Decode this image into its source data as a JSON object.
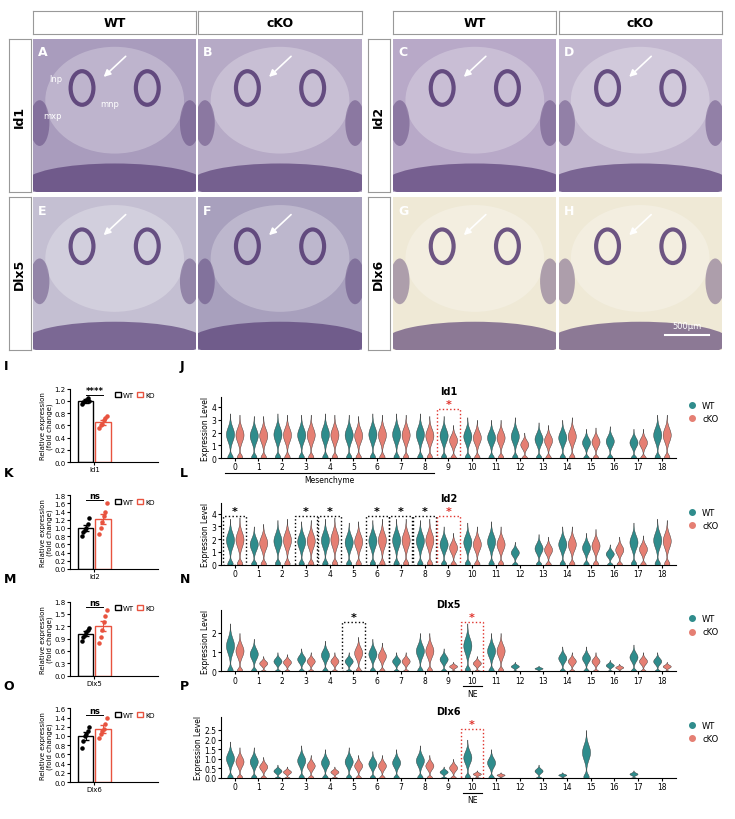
{
  "figure": {
    "column_headers": [
      "WT",
      "cKO",
      "WT",
      "cKO"
    ],
    "row_labels_left": [
      "Id1",
      "Dlx5"
    ],
    "row_labels_middle": [
      "Id2",
      "Dlx6"
    ],
    "image_panels": [
      {
        "letter": "A",
        "labels": [
          "lnp",
          "mnp",
          "mxp"
        ]
      },
      {
        "letter": "B"
      },
      {
        "letter": "C"
      },
      {
        "letter": "D"
      },
      {
        "letter": "E"
      },
      {
        "letter": "F"
      },
      {
        "letter": "G"
      },
      {
        "letter": "H",
        "scale_bar": "500μm"
      }
    ]
  },
  "chart_data": [
    {
      "panel": "I",
      "type": "bar",
      "categories": [
        "Id1"
      ],
      "ylabel": "Relative expression\n(fold change)",
      "ylim": [
        0,
        1.2
      ],
      "yticks": [
        {
          "value": 0,
          "label": "0.0"
        },
        0.2,
        0.4,
        0.6,
        0.8,
        {
          "value": 1,
          "label": "1.0"
        },
        1.2
      ],
      "legend": "upper right",
      "significance": "****",
      "series": [
        {
          "name": "WT",
          "color": "#000000",
          "values": [
            1.0
          ],
          "error": [
            0.03
          ],
          "points": [
            [
              0.95,
              0.98,
              1.0,
              1.02,
              1.05,
              1.0
            ]
          ]
        },
        {
          "name": "KO",
          "color": "#e8533f",
          "values": [
            0.65
          ],
          "error": [
            0.04
          ],
          "points": [
            [
              0.55,
              0.6,
              0.62,
              0.68,
              0.72,
              0.75
            ]
          ]
        }
      ]
    },
    {
      "panel": "J",
      "type": "violin",
      "title": "Id1",
      "ylabel": "Expression Level",
      "categories": [
        "0",
        "1",
        "2",
        "3",
        "4",
        "5",
        "6",
        "7",
        "8",
        "9",
        "10",
        "11",
        "12",
        "13",
        "14",
        "15",
        "16",
        "17",
        "18"
      ],
      "ylim": [
        0,
        4.8
      ],
      "yticks": [
        0,
        1,
        2,
        3,
        4
      ],
      "legend": "right",
      "series": [
        {
          "name": "WT",
          "color": "#2f8c8c",
          "values": [
            3.5,
            3.3,
            3.5,
            3.4,
            3.5,
            3.4,
            3.5,
            3.5,
            3.5,
            3.3,
            3.2,
            3.0,
            3.2,
            2.8,
            3.0,
            2.3,
            2.5,
            2.3,
            3.4
          ]
        },
        {
          "name": "cKO",
          "color": "#e57f73",
          "values": [
            3.4,
            3.3,
            3.4,
            3.4,
            3.4,
            3.3,
            3.4,
            3.4,
            3.3,
            2.6,
            3.0,
            3.0,
            2.0,
            2.6,
            3.2,
            2.4,
            0,
            2.3,
            3.4
          ]
        }
      ],
      "annotations": [
        {
          "text": "*",
          "category": "9",
          "color": "#e0312a"
        }
      ],
      "groups": [
        {
          "label": "Mesenchyme",
          "categories": [
            "0",
            "1",
            "2",
            "3",
            "4",
            "5",
            "6",
            "7",
            "8"
          ]
        }
      ]
    },
    {
      "panel": "K",
      "type": "bar",
      "categories": [
        "Id2"
      ],
      "ylabel": "Relative expression\n(fold change)",
      "ylim": [
        0,
        1.8
      ],
      "yticks": [
        {
          "value": 0,
          "label": "0.0"
        },
        0.2,
        0.4,
        0.6,
        0.8,
        {
          "value": 1,
          "label": "1.0"
        },
        1.2,
        1.4,
        1.6,
        1.8
      ],
      "legend": "upper right",
      "significance": "ns",
      "series": [
        {
          "name": "WT",
          "color": "#000000",
          "values": [
            1.0
          ],
          "error": [
            0.08
          ],
          "points": [
            [
              0.8,
              0.9,
              0.95,
              1.0,
              1.1,
              1.25
            ]
          ]
        },
        {
          "name": "KO",
          "color": "#e8533f",
          "values": [
            1.22
          ],
          "error": [
            0.12
          ],
          "points": [
            [
              0.85,
              1.0,
              1.15,
              1.3,
              1.4,
              1.6
            ]
          ]
        }
      ]
    },
    {
      "panel": "L",
      "type": "violin",
      "title": "Id2",
      "ylabel": "Expression Level",
      "categories": [
        "0",
        "1",
        "2",
        "3",
        "4",
        "5",
        "6",
        "7",
        "8",
        "9",
        "10",
        "11",
        "12",
        "13",
        "14",
        "15",
        "16",
        "17",
        "18"
      ],
      "ylim": [
        0,
        4.8
      ],
      "yticks": [
        0,
        1,
        2,
        3,
        4
      ],
      "legend": "right",
      "series": [
        {
          "name": "WT",
          "color": "#2f8c8c",
          "values": [
            3.6,
            3.0,
            3.5,
            3.4,
            3.6,
            3.3,
            3.5,
            3.6,
            3.5,
            3.0,
            3.3,
            3.4,
            1.8,
            2.4,
            3.0,
            2.5,
            1.6,
            3.3,
            3.6
          ]
        },
        {
          "name": "cKO",
          "color": "#e57f73",
          "values": [
            3.7,
            3.2,
            3.6,
            3.5,
            3.7,
            3.4,
            3.6,
            3.6,
            3.6,
            2.5,
            3.0,
            3.0,
            0,
            2.2,
            3.0,
            2.8,
            2.2,
            2.3,
            3.5
          ]
        }
      ],
      "annotations": [
        {
          "text": "*",
          "category": "0",
          "color": "#000000"
        },
        {
          "text": "*",
          "category": "3",
          "color": "#000000"
        },
        {
          "text": "*",
          "category": "4",
          "color": "#000000"
        },
        {
          "text": "*",
          "category": "6",
          "color": "#000000"
        },
        {
          "text": "*",
          "category": "7",
          "color": "#000000"
        },
        {
          "text": "*",
          "category": "8",
          "color": "#000000"
        },
        {
          "text": "*",
          "category": "9",
          "color": "#e0312a"
        }
      ]
    },
    {
      "panel": "M",
      "type": "bar",
      "categories": [
        "Dlx5"
      ],
      "ylabel": "Relative expression\n(fold change)",
      "ylim": [
        0,
        1.8
      ],
      "yticks": [
        {
          "value": 0,
          "label": "0.0"
        },
        0.3,
        0.6,
        0.9,
        1.2,
        1.5,
        1.8
      ],
      "legend": "upper right",
      "significance": "ns",
      "series": [
        {
          "name": "WT",
          "color": "#000000",
          "values": [
            1.02
          ],
          "error": [
            0.06
          ],
          "points": [
            [
              0.85,
              0.95,
              1.0,
              1.05,
              1.1,
              1.15
            ]
          ]
        },
        {
          "name": "KO",
          "color": "#e8533f",
          "values": [
            1.2
          ],
          "error": [
            0.12
          ],
          "points": [
            [
              0.8,
              0.95,
              1.1,
              1.3,
              1.45,
              1.6
            ]
          ]
        }
      ]
    },
    {
      "panel": "N",
      "type": "violin",
      "title": "Dlx5",
      "ylabel": "Expression Level",
      "categories": [
        "0",
        "1",
        "2",
        "3",
        "4",
        "5",
        "6",
        "7",
        "8",
        "9",
        "10",
        "11",
        "12",
        "13",
        "14",
        "15",
        "16",
        "17",
        "18"
      ],
      "ylim": [
        0,
        3.2
      ],
      "yticks": [
        0,
        1,
        2
      ],
      "legend": "right",
      "series": [
        {
          "name": "WT",
          "color": "#2f8c8c",
          "values": [
            2.5,
            1.7,
            1.0,
            1.2,
            1.6,
            1.0,
            1.7,
            1.0,
            2.0,
            1.2,
            2.5,
            2.0,
            0.5,
            0.3,
            1.3,
            1.3,
            0.6,
            1.4,
            1.0
          ]
        },
        {
          "name": "cKO",
          "color": "#e57f73",
          "values": [
            2.0,
            0.8,
            0.9,
            1.0,
            1.0,
            1.8,
            1.5,
            1.0,
            2.0,
            0.5,
            0.8,
            2.0,
            0,
            0,
            1.0,
            1.0,
            0.4,
            1.0,
            0.5
          ]
        }
      ],
      "annotations": [
        {
          "text": "*",
          "category": "5",
          "color": "#000000"
        },
        {
          "text": "*",
          "category": "10",
          "color": "#e0312a"
        }
      ],
      "groups": [
        {
          "label": "NE",
          "categories": [
            "10"
          ]
        }
      ]
    },
    {
      "panel": "O",
      "type": "bar",
      "categories": [
        "Dlx6"
      ],
      "ylabel": "Relative expression\n(fold change)",
      "ylim": [
        0,
        1.6
      ],
      "yticks": [
        {
          "value": 0,
          "label": "0.0"
        },
        0.2,
        0.4,
        0.6,
        0.8,
        {
          "value": 1,
          "label": "1.0"
        },
        1.2,
        1.4,
        1.6
      ],
      "legend": "upper right",
      "significance": "ns",
      "series": [
        {
          "name": "WT",
          "color": "#000000",
          "values": [
            1.0
          ],
          "error": [
            0.08
          ],
          "points": [
            [
              0.75,
              0.9,
              1.0,
              1.05,
              1.1,
              1.2
            ]
          ]
        },
        {
          "name": "KO",
          "color": "#e8533f",
          "values": [
            1.15
          ],
          "error": [
            0.08
          ],
          "points": [
            [
              0.95,
              1.05,
              1.1,
              1.15,
              1.25,
              1.4
            ]
          ]
        }
      ]
    },
    {
      "panel": "P",
      "type": "violin",
      "title": "Dlx6",
      "ylabel": "Expression Level",
      "categories": [
        "0",
        "1",
        "2",
        "3",
        "4",
        "5",
        "6",
        "7",
        "8",
        "9",
        "10",
        "11",
        "12",
        "13",
        "14",
        "15",
        "16",
        "17",
        "18"
      ],
      "ylim": [
        0,
        3.2
      ],
      "yticks": [
        {
          "value": 0,
          "label": "0.0"
        },
        0.5,
        {
          "value": 1,
          "label": "1.0"
        },
        1.5,
        {
          "value": 2,
          "label": "2.0"
        },
        2.5
      ],
      "legend": "right",
      "series": [
        {
          "name": "WT",
          "color": "#2f8c8c",
          "values": [
            1.9,
            1.6,
            0.7,
            1.7,
            1.5,
            1.6,
            1.4,
            1.5,
            1.7,
            0.6,
            2.0,
            1.5,
            0,
            0.7,
            0.3,
            2.5,
            0,
            0.4,
            0
          ]
        },
        {
          "name": "cKO",
          "color": "#e57f73",
          "values": [
            1.6,
            1.1,
            0.6,
            1.2,
            0.6,
            1.2,
            1.2,
            0,
            1.2,
            1.0,
            0.4,
            0.3,
            0,
            0,
            0,
            0,
            0,
            0,
            0
          ]
        }
      ],
      "annotations": [
        {
          "text": "*",
          "category": "10",
          "color": "#e0312a"
        }
      ],
      "groups": [
        {
          "label": "NE",
          "categories": [
            "10"
          ]
        }
      ]
    }
  ]
}
